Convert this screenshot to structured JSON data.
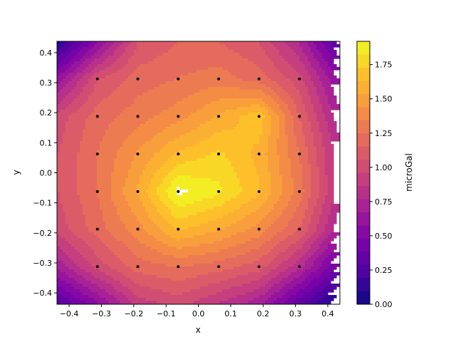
{
  "chart_data": {
    "type": "heatmap",
    "subtype": "filled-contour",
    "xlabel": "x",
    "ylabel": "y",
    "xlim": [
      -0.4375,
      0.4375
    ],
    "ylim": [
      -0.4375,
      0.4375
    ],
    "x_ticks": [
      -0.4,
      -0.3,
      -0.2,
      -0.1,
      0.0,
      0.1,
      0.2,
      0.3,
      0.4
    ],
    "y_ticks": [
      -0.4,
      -0.3,
      -0.2,
      -0.1,
      0.0,
      0.1,
      0.2,
      0.3,
      0.4
    ],
    "x_tick_labels": [
      "−0.4",
      "−0.3",
      "−0.2",
      "−0.1",
      "0.0",
      "0.1",
      "0.2",
      "0.3",
      "0.4"
    ],
    "y_tick_labels": [
      "−0.4",
      "−0.3",
      "−0.2",
      "−0.1",
      "0.0",
      "0.1",
      "0.2",
      "0.3",
      "0.4"
    ],
    "colorbar": {
      "label": "microGal",
      "vmin": 0.0,
      "vmax": 1.92,
      "colormap": "plasma",
      "ticks": [
        0.0,
        0.25,
        0.5,
        0.75,
        1.0,
        1.25,
        1.5,
        1.75
      ],
      "tick_labels": [
        "0.00",
        "0.25",
        "0.50",
        "0.75",
        "1.00",
        "1.25",
        "1.50",
        "1.75"
      ]
    },
    "grid_coords": [
      -0.4375,
      -0.3125,
      -0.1875,
      -0.0625,
      0.0625,
      0.1875,
      0.3125,
      0.4375
    ],
    "values_rows_top_to_bottom": [
      [
        0.05,
        0.55,
        1.05,
        1.15,
        1.15,
        1.05,
        0.75,
        0.25
      ],
      [
        0.6,
        1.05,
        1.2,
        1.25,
        1.3,
        1.2,
        1.0,
        0.55
      ],
      [
        1.0,
        1.2,
        1.3,
        1.4,
        1.55,
        1.7,
        1.15,
        0.7
      ],
      [
        1.05,
        1.25,
        1.45,
        1.65,
        1.75,
        1.6,
        1.25,
        0.8
      ],
      [
        1.05,
        1.25,
        1.55,
        1.95,
        1.85,
        1.65,
        1.3,
        0.8
      ],
      [
        1.0,
        1.2,
        1.4,
        1.65,
        1.55,
        1.4,
        1.15,
        0.7
      ],
      [
        0.7,
        1.0,
        1.2,
        1.25,
        1.2,
        1.1,
        0.8,
        0.35
      ],
      [
        0.25,
        0.55,
        0.9,
        1.0,
        0.85,
        0.7,
        0.3,
        0.0
      ]
    ],
    "sample_points_x": [
      -0.3125,
      -0.1875,
      -0.0625,
      0.0625,
      0.1875,
      0.3125
    ],
    "sample_points_y": [
      -0.3125,
      -0.1875,
      -0.0625,
      0.0625,
      0.1875,
      0.3125
    ],
    "grid": false
  }
}
